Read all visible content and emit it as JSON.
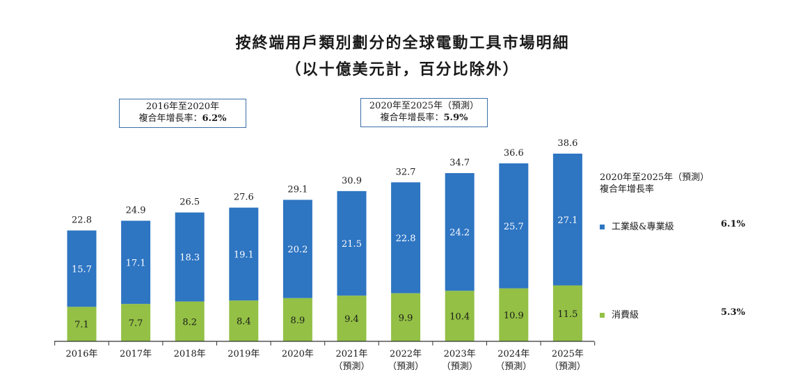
{
  "title": "按終端用戶類別劃分的全球電動工具市場明細",
  "subtitle": "（以十億美元計，百分比除外）",
  "cagr_boxes": [
    {
      "line1": "2016年至2020年",
      "line2_label": "複合年增長率：",
      "line2_value": "6.2%"
    },
    {
      "line1": "2020年至2025年（預測）",
      "line2_label": "複合年增長率：",
      "line2_value": "5.9%"
    }
  ],
  "legend": {
    "title_line1": "2020年至2025年（預測）",
    "title_line2": "複合年增長率",
    "items": [
      {
        "label": "工業級&專業級",
        "cagr": "6.1%",
        "color": "#2e75c2"
      },
      {
        "label": "消費級",
        "cagr": "5.3%",
        "color": "#93c045"
      }
    ]
  },
  "chart_data": {
    "type": "bar",
    "stacked": true,
    "categories": [
      "2016年",
      "2017年",
      "2018年",
      "2019年",
      "2020年",
      "2021年",
      "2022年",
      "2023年",
      "2024年",
      "2025年"
    ],
    "category_sublabels": [
      "",
      "",
      "",
      "",
      "",
      "（預測）",
      "（預測）",
      "（預測）",
      "（預測）",
      "（預測）"
    ],
    "series": [
      {
        "name": "消費級",
        "values": [
          7.1,
          7.7,
          8.2,
          8.4,
          8.9,
          9.4,
          9.9,
          10.4,
          10.9,
          11.5
        ],
        "color": "#93c045"
      },
      {
        "name": "工業級&專業級",
        "values": [
          15.7,
          17.1,
          18.3,
          19.1,
          20.2,
          21.5,
          22.8,
          24.2,
          25.7,
          27.1
        ],
        "color": "#2e75c2"
      }
    ],
    "totals": [
      "22.8",
      "24.9",
      "26.5",
      "27.6",
      "29.1",
      "30.9",
      "32.7",
      "34.7",
      "36.6",
      "38.6"
    ],
    "value_labels_consumer": [
      "7.1",
      "7.7",
      "8.2",
      "8.4",
      "8.9",
      "9.4",
      "9.9",
      "10.4",
      "10.9",
      "11.5"
    ],
    "value_labels_industrial": [
      "15.7",
      "17.1",
      "18.3",
      "19.1",
      "20.2",
      "21.5",
      "22.8",
      "24.2",
      "25.7",
      "27.1"
    ],
    "ylim": [
      0,
      38.6
    ]
  }
}
